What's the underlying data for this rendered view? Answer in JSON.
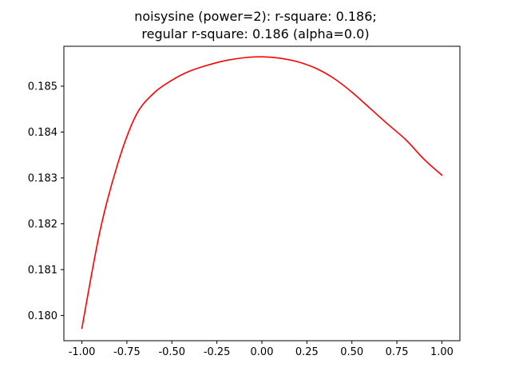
{
  "chart_data": {
    "type": "line",
    "title": "noisysine (power=2): r-square: 0.186;",
    "subtitle": "regular r-square: 0.186 (alpha=0.0)",
    "xlabel": "",
    "ylabel": "",
    "xlim": [
      -1.1,
      1.1
    ],
    "ylim": [
      0.17945,
      0.18587
    ],
    "grid": false,
    "x_ticks": [
      "-1.00",
      "-0.75",
      "-0.50",
      "-0.25",
      "0.00",
      "0.25",
      "0.50",
      "0.75",
      "1.00"
    ],
    "y_ticks": [
      "0.180",
      "0.181",
      "0.182",
      "0.183",
      "0.184",
      "0.185"
    ],
    "series": [
      {
        "color": "#ff0000",
        "x": [
          -1.0,
          -0.9,
          -0.8,
          -0.7,
          -0.6,
          -0.5,
          -0.4,
          -0.3,
          -0.2,
          -0.1,
          0.0,
          0.1,
          0.2,
          0.3,
          0.4,
          0.5,
          0.6,
          0.7,
          0.8,
          0.9,
          1.0
        ],
        "y": [
          0.17972,
          0.18183,
          0.18332,
          0.18436,
          0.18485,
          0.18513,
          0.18533,
          0.18546,
          0.18556,
          0.18562,
          0.18564,
          0.18561,
          0.18553,
          0.18539,
          0.18517,
          0.18487,
          0.18452,
          0.18417,
          0.18383,
          0.18341,
          0.18306
        ]
      }
    ]
  }
}
